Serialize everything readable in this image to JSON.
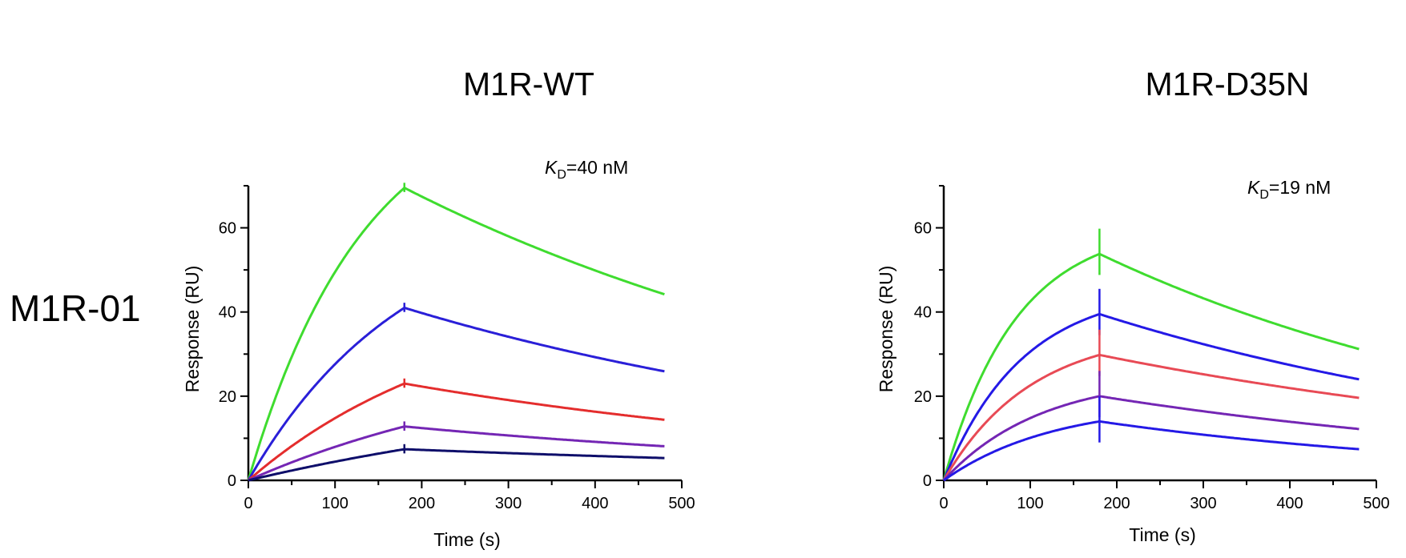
{
  "row_label": "M1R-01",
  "colors": {
    "green": "#3fdc2f",
    "blue": "#2a1fd8",
    "red": "#e42d2d",
    "purple": "#7426b4",
    "navy": "#0e0e6a",
    "pink_red": "#e84a55",
    "bright_blue": "#2419e6"
  },
  "chart_data": [
    {
      "type": "line",
      "title": "M1R-WT",
      "xlabel": "Time (s)",
      "ylabel": "Response (RU)",
      "xlim": [
        0,
        500
      ],
      "ylim": [
        0,
        70
      ],
      "xticks": [
        "0",
        "100",
        "200",
        "300",
        "400",
        "500"
      ],
      "yticks": [
        "0",
        "20",
        "40",
        "60"
      ],
      "annotation": {
        "symbol": "K",
        "subscript": "D",
        "text": "=40 nM"
      },
      "injection_end": 180,
      "series": [
        {
          "color": "green",
          "peak": 69.5,
          "assoc_k": 0.0075,
          "end": 44.2
        },
        {
          "color": "blue",
          "peak": 41.0,
          "assoc_k": 0.0055,
          "end": 25.9
        },
        {
          "color": "red",
          "peak": 23.0,
          "assoc_k": 0.004,
          "end": 14.4
        },
        {
          "color": "purple",
          "peak": 12.8,
          "assoc_k": 0.003,
          "end": 8.1
        },
        {
          "color": "navy",
          "peak": 7.4,
          "assoc_k": 0.002,
          "end": 5.3
        }
      ]
    },
    {
      "type": "line",
      "title": "M1R-D35N",
      "xlabel": "Time (s)",
      "ylabel": "Response (RU)",
      "xlim": [
        0,
        500
      ],
      "ylim": [
        0,
        70
      ],
      "xticks": [
        "0",
        "100",
        "200",
        "300",
        "400",
        "500"
      ],
      "yticks": [
        "0",
        "20",
        "40",
        "60"
      ],
      "annotation": {
        "symbol": "K",
        "subscript": "D",
        "text": "=19 nM"
      },
      "injection_end": 180,
      "series": [
        {
          "color": "green",
          "peak": 53.8,
          "assoc_k": 0.012,
          "end": 31.2
        },
        {
          "color": "bright_blue",
          "peak": 39.5,
          "assoc_k": 0.011,
          "end": 24.0
        },
        {
          "color": "pink_red",
          "peak": 29.8,
          "assoc_k": 0.01,
          "end": 19.6
        },
        {
          "color": "purple",
          "peak": 20.0,
          "assoc_k": 0.009,
          "end": 12.2
        },
        {
          "color": "bright_blue",
          "peak": 14.0,
          "assoc_k": 0.008,
          "end": 7.4
        }
      ]
    }
  ]
}
